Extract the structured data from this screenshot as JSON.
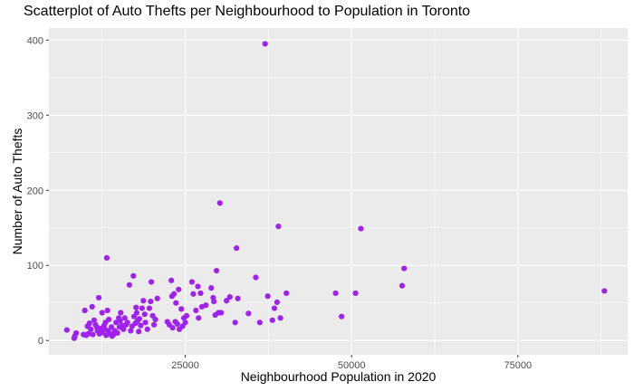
{
  "chart_data": {
    "type": "scatter",
    "title": "Scatterplot of Auto Thefts per Neighbourhood to Population in Toronto",
    "xlabel": "Neighbourhood Population in 2020",
    "ylabel": "Number of Auto Thefts",
    "xlim": [
      4500,
      91500
    ],
    "ylim": [
      -19,
      416
    ],
    "x_ticks": [
      25000,
      50000,
      75000
    ],
    "x_tick_labels": [
      "25000",
      "50000",
      "75000"
    ],
    "y_ticks": [
      0,
      100,
      200,
      300,
      400
    ],
    "y_tick_labels": [
      "0",
      "100",
      "200",
      "300",
      "400"
    ],
    "grid": true,
    "legend": "none",
    "colors": {
      "panel": "#EBEBEB",
      "grid": "#FFFFFF",
      "point": "#A020F0"
    },
    "points": [
      [
        7200,
        14
      ],
      [
        8300,
        3
      ],
      [
        8400,
        6
      ],
      [
        8600,
        10
      ],
      [
        9700,
        8
      ],
      [
        9900,
        40
      ],
      [
        10100,
        7
      ],
      [
        10300,
        19
      ],
      [
        10400,
        9
      ],
      [
        10600,
        23
      ],
      [
        10800,
        15
      ],
      [
        11000,
        45
      ],
      [
        11100,
        8
      ],
      [
        11300,
        27
      ],
      [
        11500,
        21
      ],
      [
        11700,
        18
      ],
      [
        11800,
        13
      ],
      [
        12000,
        57
      ],
      [
        12100,
        9
      ],
      [
        12300,
        16
      ],
      [
        12500,
        11
      ],
      [
        12500,
        37
      ],
      [
        12800,
        20
      ],
      [
        12900,
        15
      ],
      [
        13000,
        24
      ],
      [
        13100,
        7
      ],
      [
        13200,
        110
      ],
      [
        13300,
        40
      ],
      [
        13400,
        13
      ],
      [
        13500,
        28
      ],
      [
        13700,
        9
      ],
      [
        13900,
        18
      ],
      [
        14000,
        6
      ],
      [
        14200,
        8
      ],
      [
        14400,
        13
      ],
      [
        14600,
        24
      ],
      [
        14800,
        10
      ],
      [
        15000,
        30
      ],
      [
        15100,
        18
      ],
      [
        15200,
        26
      ],
      [
        15300,
        37
      ],
      [
        15500,
        20
      ],
      [
        15700,
        15
      ],
      [
        15900,
        30
      ],
      [
        16100,
        21
      ],
      [
        16300,
        24
      ],
      [
        16600,
        74
      ],
      [
        16800,
        13
      ],
      [
        17000,
        19
      ],
      [
        17200,
        86
      ],
      [
        17300,
        32
      ],
      [
        17500,
        23
      ],
      [
        17600,
        44
      ],
      [
        17700,
        37
      ],
      [
        17800,
        26
      ],
      [
        18000,
        12
      ],
      [
        18100,
        29
      ],
      [
        18300,
        20
      ],
      [
        18500,
        43
      ],
      [
        18700,
        53
      ],
      [
        18900,
        35
      ],
      [
        19000,
        24
      ],
      [
        19300,
        15
      ],
      [
        19600,
        43
      ],
      [
        19800,
        52
      ],
      [
        19900,
        78
      ],
      [
        20100,
        33
      ],
      [
        20300,
        21
      ],
      [
        20500,
        28
      ],
      [
        20800,
        56
      ],
      [
        22300,
        25
      ],
      [
        22600,
        21
      ],
      [
        22900,
        80
      ],
      [
        23000,
        59
      ],
      [
        23100,
        17
      ],
      [
        23300,
        62
      ],
      [
        23500,
        25
      ],
      [
        23600,
        50
      ],
      [
        23800,
        22
      ],
      [
        24000,
        68
      ],
      [
        24100,
        15
      ],
      [
        24400,
        42
      ],
      [
        24600,
        19
      ],
      [
        24800,
        30
      ],
      [
        25000,
        24
      ],
      [
        25200,
        33
      ],
      [
        26000,
        78
      ],
      [
        26200,
        62
      ],
      [
        26600,
        40
      ],
      [
        26900,
        72
      ],
      [
        27000,
        30
      ],
      [
        27300,
        63
      ],
      [
        27500,
        45
      ],
      [
        28100,
        47
      ],
      [
        28900,
        70
      ],
      [
        29200,
        57
      ],
      [
        29300,
        52
      ],
      [
        29500,
        34
      ],
      [
        29700,
        93
      ],
      [
        30000,
        37
      ],
      [
        30200,
        183
      ],
      [
        30400,
        37
      ],
      [
        31200,
        53
      ],
      [
        31700,
        58
      ],
      [
        32500,
        24
      ],
      [
        32700,
        123
      ],
      [
        32900,
        56
      ],
      [
        34500,
        36
      ],
      [
        35600,
        84
      ],
      [
        36200,
        24
      ],
      [
        37000,
        395
      ],
      [
        37400,
        59
      ],
      [
        38100,
        27
      ],
      [
        38400,
        43
      ],
      [
        38800,
        51
      ],
      [
        39000,
        152
      ],
      [
        39300,
        30
      ],
      [
        40200,
        63
      ],
      [
        47600,
        63
      ],
      [
        48500,
        32
      ],
      [
        50600,
        63
      ],
      [
        51400,
        149
      ],
      [
        57600,
        73
      ],
      [
        57900,
        96
      ],
      [
        88000,
        66
      ]
    ]
  }
}
